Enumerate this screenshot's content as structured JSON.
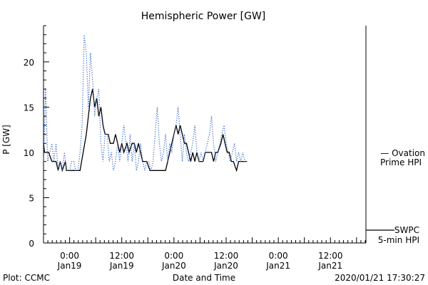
{
  "chart_data": {
    "type": "line",
    "title": "Hemispheric Power [GW]",
    "ylabel": "P [GW]",
    "xlabel": "Date and Time",
    "ylim": [
      0,
      24
    ],
    "yticks": [
      0,
      5,
      10,
      15,
      20
    ],
    "xlim": [
      -0.25,
      1.7
    ],
    "xticks": [
      {
        "t": 0.0,
        "top": "0:00",
        "bottom": "Jan19"
      },
      {
        "t": 0.5,
        "top": "12:00",
        "bottom": "Jan19"
      },
      {
        "t": 1.0,
        "top": "0:00",
        "bottom": "Jan20"
      },
      {
        "t": 1.5,
        "top": "12:00",
        "bottom": "Jan20"
      },
      {
        "t": 2.0,
        "top": "0:00",
        "bottom": "Jan21"
      },
      {
        "t": 2.5,
        "top": "12:00",
        "bottom": "Jan21"
      }
    ],
    "grid": false,
    "series": [
      {
        "name": "SWPC 5-min HPI",
        "color": "#000000",
        "style": "solid",
        "points": [
          [
            -0.25,
            11
          ],
          [
            -0.24,
            10
          ],
          [
            -0.2,
            10
          ],
          [
            -0.17,
            9
          ],
          [
            -0.13,
            9
          ],
          [
            -0.11,
            8
          ],
          [
            -0.09,
            9
          ],
          [
            -0.07,
            8
          ],
          [
            -0.04,
            9
          ],
          [
            -0.03,
            8
          ],
          [
            0.1,
            8
          ],
          [
            0.13,
            10
          ],
          [
            0.16,
            12
          ],
          [
            0.18,
            14
          ],
          [
            0.2,
            16
          ],
          [
            0.22,
            17
          ],
          [
            0.24,
            15
          ],
          [
            0.26,
            16
          ],
          [
            0.28,
            14
          ],
          [
            0.3,
            15
          ],
          [
            0.32,
            13
          ],
          [
            0.34,
            12
          ],
          [
            0.37,
            12
          ],
          [
            0.39,
            11
          ],
          [
            0.42,
            11
          ],
          [
            0.44,
            12
          ],
          [
            0.46,
            11
          ],
          [
            0.48,
            10
          ],
          [
            0.5,
            11
          ],
          [
            0.52,
            10
          ],
          [
            0.55,
            11
          ],
          [
            0.57,
            10
          ],
          [
            0.6,
            11
          ],
          [
            0.62,
            11
          ],
          [
            0.64,
            10
          ],
          [
            0.66,
            11
          ],
          [
            0.68,
            10
          ],
          [
            0.7,
            9
          ],
          [
            0.72,
            9
          ],
          [
            0.74,
            9
          ],
          [
            0.77,
            8
          ],
          [
            0.92,
            8
          ],
          [
            0.94,
            9
          ],
          [
            0.96,
            10
          ],
          [
            0.98,
            11
          ],
          [
            1.0,
            12
          ],
          [
            1.02,
            13
          ],
          [
            1.04,
            12
          ],
          [
            1.06,
            13
          ],
          [
            1.08,
            12
          ],
          [
            1.1,
            11
          ],
          [
            1.12,
            11
          ],
          [
            1.14,
            10
          ],
          [
            1.16,
            9
          ],
          [
            1.18,
            10
          ],
          [
            1.2,
            9
          ],
          [
            1.22,
            10
          ],
          [
            1.24,
            9
          ],
          [
            1.28,
            9
          ],
          [
            1.3,
            10
          ],
          [
            1.33,
            10
          ],
          [
            1.36,
            10
          ],
          [
            1.38,
            9
          ],
          [
            1.4,
            10
          ],
          [
            1.42,
            10
          ],
          [
            1.45,
            11
          ],
          [
            1.47,
            12
          ],
          [
            1.49,
            11
          ],
          [
            1.51,
            10
          ],
          [
            1.53,
            10
          ],
          [
            1.55,
            9
          ],
          [
            1.57,
            9
          ],
          [
            1.6,
            8
          ],
          [
            1.62,
            9
          ],
          [
            1.64,
            9
          ],
          [
            1.66,
            9
          ],
          [
            1.68,
            9
          ],
          [
            1.7,
            9
          ]
        ]
      },
      {
        "name": "Ovation Prime HPI",
        "color": "#3366cc",
        "style": "dotted",
        "points": [
          [
            -0.25,
            9
          ],
          [
            -0.23,
            17
          ],
          [
            -0.21,
            9
          ],
          [
            -0.19,
            10
          ],
          [
            -0.17,
            11
          ],
          [
            -0.15,
            9
          ],
          [
            -0.13,
            11
          ],
          [
            -0.11,
            8
          ],
          [
            -0.09,
            9
          ],
          [
            -0.07,
            8
          ],
          [
            -0.05,
            10
          ],
          [
            -0.03,
            8
          ],
          [
            0.0,
            8
          ],
          [
            0.02,
            9
          ],
          [
            0.04,
            9
          ],
          [
            0.06,
            8
          ],
          [
            0.08,
            8
          ],
          [
            0.1,
            10
          ],
          [
            0.12,
            13
          ],
          [
            0.14,
            23
          ],
          [
            0.16,
            21
          ],
          [
            0.18,
            15
          ],
          [
            0.2,
            21
          ],
          [
            0.22,
            18
          ],
          [
            0.24,
            14
          ],
          [
            0.26,
            16
          ],
          [
            0.28,
            17
          ],
          [
            0.3,
            11
          ],
          [
            0.32,
            9
          ],
          [
            0.34,
            12
          ],
          [
            0.36,
            12
          ],
          [
            0.38,
            9
          ],
          [
            0.4,
            10
          ],
          [
            0.42,
            8
          ],
          [
            0.44,
            9
          ],
          [
            0.46,
            11
          ],
          [
            0.48,
            9
          ],
          [
            0.5,
            11
          ],
          [
            0.52,
            13
          ],
          [
            0.54,
            11
          ],
          [
            0.56,
            9
          ],
          [
            0.58,
            12
          ],
          [
            0.6,
            9
          ],
          [
            0.62,
            11
          ],
          [
            0.64,
            8
          ],
          [
            0.66,
            9
          ],
          [
            0.68,
            11
          ],
          [
            0.7,
            9
          ],
          [
            0.72,
            8
          ],
          [
            0.74,
            9
          ],
          [
            0.76,
            9
          ],
          [
            0.78,
            8
          ],
          [
            0.8,
            9
          ],
          [
            0.82,
            12
          ],
          [
            0.84,
            15
          ],
          [
            0.86,
            11
          ],
          [
            0.88,
            9
          ],
          [
            0.9,
            10
          ],
          [
            0.92,
            12
          ],
          [
            0.94,
            9
          ],
          [
            0.96,
            11
          ],
          [
            0.98,
            10
          ],
          [
            1.0,
            12
          ],
          [
            1.02,
            13
          ],
          [
            1.04,
            15
          ],
          [
            1.06,
            12
          ],
          [
            1.08,
            9
          ],
          [
            1.1,
            12
          ],
          [
            1.12,
            10
          ],
          [
            1.14,
            9
          ],
          [
            1.16,
            10
          ],
          [
            1.18,
            11
          ],
          [
            1.2,
            13
          ],
          [
            1.22,
            10
          ],
          [
            1.24,
            9
          ],
          [
            1.26,
            10
          ],
          [
            1.28,
            9
          ],
          [
            1.3,
            10
          ],
          [
            1.32,
            11
          ],
          [
            1.34,
            12
          ],
          [
            1.36,
            14
          ],
          [
            1.38,
            11
          ],
          [
            1.4,
            9
          ],
          [
            1.42,
            10
          ],
          [
            1.44,
            11
          ],
          [
            1.46,
            12
          ],
          [
            1.48,
            13
          ],
          [
            1.5,
            11
          ],
          [
            1.52,
            10
          ],
          [
            1.54,
            9
          ],
          [
            1.56,
            10
          ],
          [
            1.58,
            11
          ],
          [
            1.6,
            9
          ],
          [
            1.62,
            10
          ],
          [
            1.64,
            9
          ],
          [
            1.66,
            10
          ],
          [
            1.68,
            9
          ],
          [
            1.7,
            9
          ]
        ]
      }
    ],
    "legend": [
      {
        "lines": [
          "— Ovation",
          "Prime HPI"
        ],
        "color": "#3366cc",
        "placement": "right-middle"
      },
      {
        "lines": [
          "SWPC",
          "5-min HPI"
        ],
        "color": "#000000",
        "placement": "right-bottom"
      }
    ]
  },
  "footer": {
    "left": "Plot: CCMC",
    "right": "2020/01/21 17:30:27"
  }
}
